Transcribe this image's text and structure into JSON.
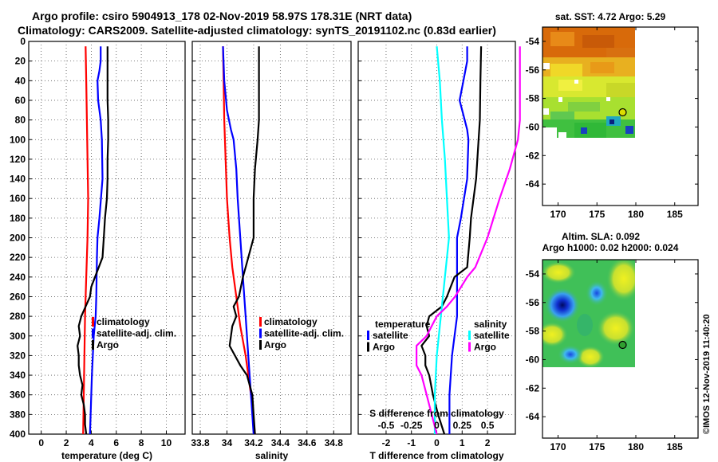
{
  "header": {
    "line1": "Argo profile: csiro 5904913_178 02-Nov-2019 58.97S 178.31E (NRT data)",
    "line2": "Climatology: CARS2009. Satellite-adjusted climatology: synTS_20191102.nc (0.83d earlier)"
  },
  "watermark": "©IMOS 12-Nov-2019 11:40:20",
  "colors": {
    "argo": "#000000",
    "climatology": "#ff0000",
    "satellite": "#0000ff",
    "sat_salinity": "#00ffff",
    "argo_salinity_diff": "#ff00ff",
    "grid": "#888888"
  },
  "chart_data": [
    {
      "type": "line",
      "id": "temperature",
      "xlabel": "temperature (deg C)",
      "ylabel": "",
      "xlim": [
        -1,
        11.5
      ],
      "ylim": [
        0,
        400
      ],
      "y_reversed": true,
      "xticks": [
        "0",
        "2",
        "4",
        "6",
        "8",
        "10"
      ],
      "xtick_values": [
        0,
        2,
        4,
        6,
        8,
        10
      ],
      "yticks": [
        "0",
        "20",
        "40",
        "60",
        "80",
        "100",
        "120",
        "140",
        "160",
        "180",
        "200",
        "220",
        "240",
        "260",
        "280",
        "300",
        "320",
        "340",
        "360",
        "380",
        "400"
      ],
      "grid": true,
      "legend": [
        "climatology",
        "satellite-adj. clim.",
        "Argo"
      ],
      "series": [
        {
          "name": "climatology",
          "color": "#ff0000",
          "depth": [
            5,
            40,
            80,
            120,
            160,
            200,
            240,
            280,
            320,
            360,
            400
          ],
          "values": [
            3.55,
            3.6,
            3.65,
            3.7,
            3.75,
            3.7,
            3.6,
            3.5,
            3.45,
            3.4,
            3.35
          ]
        },
        {
          "name": "satellite-adj. clim.",
          "color": "#0000ff",
          "depth": [
            5,
            20,
            30,
            40,
            60,
            80,
            100,
            140,
            180,
            200,
            220,
            260,
            280,
            300,
            340,
            380,
            400
          ],
          "values": [
            4.75,
            4.75,
            4.65,
            4.5,
            4.55,
            4.75,
            4.85,
            4.9,
            4.65,
            4.5,
            4.45,
            4.4,
            4.35,
            4.2,
            4.05,
            3.95,
            3.9
          ]
        },
        {
          "name": "Argo",
          "color": "#000000",
          "depth": [
            5,
            20,
            40,
            60,
            80,
            100,
            120,
            140,
            160,
            180,
            200,
            220,
            240,
            250,
            260,
            280,
            290,
            300,
            310,
            320,
            330,
            340,
            350,
            360,
            370,
            380,
            390,
            400
          ],
          "values": [
            5.3,
            5.3,
            5.3,
            5.3,
            5.35,
            5.35,
            5.3,
            5.3,
            5.25,
            5.1,
            5.0,
            4.9,
            4.3,
            4.0,
            3.9,
            3.2,
            3.0,
            3.1,
            2.9,
            3.0,
            3.0,
            3.1,
            3.3,
            3.2,
            3.4,
            3.5,
            3.5,
            3.6
          ]
        }
      ]
    },
    {
      "type": "line",
      "id": "salinity",
      "xlabel": "salinity",
      "xlim": [
        33.74,
        34.93
      ],
      "ylim": [
        0,
        400
      ],
      "y_reversed": true,
      "xticks": [
        "33.8",
        "34",
        "34.2",
        "34.4",
        "34.6",
        "34.8"
      ],
      "xtick_values": [
        33.8,
        34.0,
        34.2,
        34.4,
        34.6,
        34.8
      ],
      "grid": true,
      "legend": [
        "climatology",
        "satellite-adj. clim.",
        "Argo"
      ],
      "series": [
        {
          "name": "climatology",
          "color": "#ff0000",
          "depth": [
            5,
            40,
            80,
            120,
            160,
            200,
            230,
            260,
            290,
            320,
            360,
            400
          ],
          "values": [
            33.97,
            33.975,
            33.98,
            33.99,
            34.0,
            34.02,
            34.04,
            34.07,
            34.1,
            34.14,
            34.18,
            34.21
          ]
        },
        {
          "name": "satellite-adj. clim.",
          "color": "#0000ff",
          "depth": [
            5,
            40,
            70,
            90,
            100,
            130,
            160,
            200,
            240,
            280,
            320,
            360,
            400
          ],
          "values": [
            33.97,
            33.98,
            34.0,
            34.03,
            34.05,
            34.07,
            34.08,
            34.1,
            34.12,
            34.14,
            34.16,
            34.18,
            34.2
          ]
        },
        {
          "name": "Argo",
          "color": "#000000",
          "depth": [
            5,
            40,
            80,
            100,
            130,
            160,
            200,
            230,
            240,
            260,
            270,
            280,
            290,
            300,
            310,
            320,
            330,
            340,
            360,
            380,
            400
          ],
          "values": [
            34.24,
            34.24,
            34.24,
            34.23,
            34.21,
            34.2,
            34.2,
            34.14,
            34.12,
            34.09,
            34.05,
            34.07,
            34.04,
            34.03,
            34.02,
            34.06,
            34.1,
            34.15,
            34.19,
            34.2,
            34.21
          ]
        }
      ]
    },
    {
      "type": "line",
      "id": "difference",
      "xlabel": "T difference from climatology",
      "x2label": "S difference from climatology",
      "xlim": [
        -3.1,
        3.1
      ],
      "ylim": [
        0,
        400
      ],
      "y_reversed": true,
      "xticks": [
        "-2",
        "-1",
        "0",
        "1",
        "2"
      ],
      "xtick_values": [
        -2,
        -1,
        0,
        1,
        2
      ],
      "x2ticks": [
        "-0.5",
        "-0.25",
        "0",
        "0.25",
        "0.5"
      ],
      "grid": true,
      "legend_left_title": "temperature",
      "legend_left": [
        "satellite",
        "Argo"
      ],
      "legend_right_title": "salinity",
      "legend_right": [
        "satellite",
        "Argo"
      ],
      "series": [
        {
          "name": "temperature satellite",
          "color": "#0000ff",
          "depth": [
            5,
            20,
            40,
            60,
            80,
            90,
            100,
            140,
            180,
            200,
            240,
            280,
            320,
            360,
            400
          ],
          "values": [
            1.2,
            1.2,
            1.05,
            0.9,
            1.1,
            1.2,
            1.25,
            1.2,
            0.95,
            0.8,
            0.8,
            0.8,
            0.6,
            0.5,
            0.5
          ]
        },
        {
          "name": "temperature Argo",
          "color": "#000000",
          "depth": [
            5,
            40,
            80,
            100,
            140,
            180,
            200,
            230,
            240,
            260,
            270,
            280,
            290,
            300,
            310,
            320,
            330,
            340,
            360,
            380,
            400
          ],
          "values": [
            1.75,
            1.72,
            1.7,
            1.65,
            1.55,
            1.35,
            1.3,
            1.2,
            0.7,
            0.4,
            0.2,
            -0.3,
            -0.4,
            -0.3,
            -0.6,
            -0.45,
            -0.45,
            -0.3,
            -0.15,
            0.05,
            0.3
          ]
        },
        {
          "name": "salinity satellite",
          "color": "#00ffff",
          "depth": [
            5,
            40,
            80,
            120,
            160,
            200,
            240,
            280,
            320,
            360,
            400
          ],
          "values": [
            0.0,
            0.03,
            0.05,
            0.08,
            0.1,
            0.12,
            0.08,
            0.04,
            0.0,
            -0.02,
            -0.02
          ]
        },
        {
          "name": "salinity Argo",
          "color": "#ff00ff",
          "depth": [
            5,
            40,
            80,
            100,
            130,
            160,
            200,
            230,
            240,
            260,
            270,
            280,
            290,
            300,
            310,
            320,
            330,
            340,
            360,
            380,
            400
          ],
          "values": [
            0.82,
            0.82,
            0.82,
            0.8,
            0.72,
            0.62,
            0.5,
            0.38,
            0.3,
            0.18,
            0.1,
            0.0,
            -0.05,
            -0.1,
            -0.2,
            -0.2,
            -0.2,
            -0.15,
            -0.1,
            -0.05,
            0.0
          ]
        }
      ]
    },
    {
      "type": "heatmap",
      "id": "sst_map",
      "title": "sat. SST: 4.72 Argo: 5.29",
      "xlim": [
        168,
        188
      ],
      "ylim": [
        -65.5,
        -53
      ],
      "xticks": [
        "170",
        "175",
        "180",
        "185"
      ],
      "xtick_values": [
        170,
        175,
        180,
        185
      ],
      "yticks": [
        "-54",
        "-56",
        "-58",
        "-60",
        "-62",
        "-64"
      ],
      "ytick_values": [
        -54,
        -56,
        -58,
        -60,
        -62,
        -64
      ],
      "data_extent": {
        "lon": [
          168,
          180
        ],
        "lat": [
          -60,
          -53
        ]
      },
      "argo_position": {
        "lon": 178.31,
        "lat": -58.97
      }
    },
    {
      "type": "heatmap",
      "id": "sla_map",
      "title": "Altim. SLA: 0.092",
      "subtitle": "Argo h1000: 0.02 h2000: 0.024",
      "xlim": [
        168,
        188
      ],
      "ylim": [
        -65.5,
        -53
      ],
      "xticks": [
        "170",
        "175",
        "180",
        "185"
      ],
      "xtick_values": [
        170,
        175,
        180,
        185
      ],
      "yticks": [
        "-54",
        "-56",
        "-58",
        "-60",
        "-62",
        "-64"
      ],
      "ytick_values": [
        -54,
        -56,
        -58,
        -60,
        -62,
        -64
      ],
      "data_extent": {
        "lon": [
          168,
          180
        ],
        "lat": [
          -60,
          -53
        ]
      },
      "argo_position": {
        "lon": 178.31,
        "lat": -58.97
      }
    }
  ]
}
